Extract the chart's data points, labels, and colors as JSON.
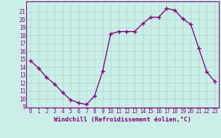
{
  "x": [
    0,
    1,
    2,
    3,
    4,
    5,
    6,
    7,
    8,
    9,
    10,
    11,
    12,
    13,
    14,
    15,
    16,
    17,
    18,
    19,
    20,
    21,
    22,
    23
  ],
  "y": [
    14.8,
    13.9,
    12.7,
    11.9,
    10.8,
    9.9,
    9.5,
    9.3,
    10.4,
    13.5,
    18.2,
    18.5,
    18.5,
    18.5,
    19.5,
    20.3,
    20.3,
    21.4,
    21.2,
    20.1,
    19.4,
    16.4,
    13.4,
    12.2
  ],
  "line_color": "#800080",
  "marker": "+",
  "marker_size": 4,
  "bg_color": "#cceee8",
  "grid_color": "#aaddcc",
  "xlabel": "Windchill (Refroidissement éolien,°C)",
  "xlabel_fontsize": 6.5,
  "ylim": [
    9,
    22
  ],
  "xlim": [
    -0.5,
    23.5
  ],
  "yticks": [
    9,
    10,
    11,
    12,
    13,
    14,
    15,
    16,
    17,
    18,
    19,
    20,
    21
  ],
  "xticks": [
    0,
    1,
    2,
    3,
    4,
    5,
    6,
    7,
    8,
    9,
    10,
    11,
    12,
    13,
    14,
    15,
    16,
    17,
    18,
    19,
    20,
    21,
    22,
    23
  ],
  "tick_fontsize": 5.5,
  "line_width": 1.0
}
